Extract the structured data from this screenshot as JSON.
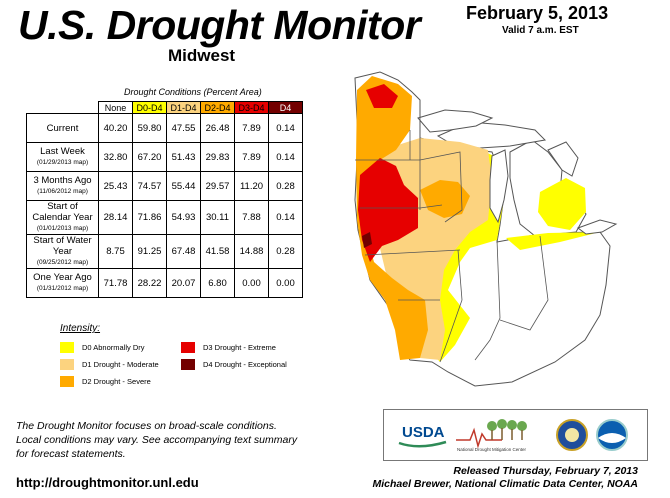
{
  "header": {
    "title": "U.S. Drought Monitor",
    "region": "Midwest",
    "date": "February 5, 2013",
    "valid": "Valid 7 a.m. EST"
  },
  "table": {
    "caption": "Drought Conditions (Percent Area)",
    "columns": [
      "None",
      "D0-D4",
      "D1-D4",
      "D2-D4",
      "D3-D4",
      "D4"
    ],
    "column_colors": [
      "#ffffff",
      "#ffff00",
      "#fcd37f",
      "#ffaa00",
      "#e60000",
      "#730000"
    ],
    "column_text_colors": [
      "#000000",
      "#000000",
      "#000000",
      "#000000",
      "#000000",
      "#ffffff"
    ],
    "rows": [
      {
        "label": "Current",
        "sub": "",
        "values": [
          "40.20",
          "59.80",
          "47.55",
          "26.48",
          "7.89",
          "0.14"
        ]
      },
      {
        "label": "Last Week",
        "sub": "(01/29/2013 map)",
        "values": [
          "32.80",
          "67.20",
          "51.43",
          "29.83",
          "7.89",
          "0.14"
        ]
      },
      {
        "label": "3 Months Ago",
        "sub": "(11/06/2012 map)",
        "values": [
          "25.43",
          "74.57",
          "55.44",
          "29.57",
          "11.20",
          "0.28"
        ]
      },
      {
        "label": "Start of Calendar Year",
        "sub": "(01/01/2013 map)",
        "values": [
          "28.14",
          "71.86",
          "54.93",
          "30.11",
          "7.88",
          "0.14"
        ]
      },
      {
        "label": "Start of Water Year",
        "sub": "(09/25/2012 map)",
        "values": [
          "8.75",
          "91.25",
          "67.48",
          "41.58",
          "14.88",
          "0.28"
        ]
      },
      {
        "label": "One Year Ago",
        "sub": "(01/31/2012 map)",
        "values": [
          "71.78",
          "28.22",
          "20.07",
          "6.80",
          "0.00",
          "0.00"
        ]
      }
    ]
  },
  "legend": {
    "title": "Intensity:",
    "items": [
      {
        "label": "D0 Abnormally Dry",
        "color": "#ffff00"
      },
      {
        "label": "D1 Drought - Moderate",
        "color": "#fcd37f"
      },
      {
        "label": "D2 Drought - Severe",
        "color": "#ffaa00"
      },
      {
        "label": "D3 Drought - Extreme",
        "color": "#e60000"
      },
      {
        "label": "D4 Drought - Exceptional",
        "color": "#730000"
      }
    ]
  },
  "footer": {
    "note_lines": [
      "The Drought Monitor focuses on broad-scale conditions.",
      "Local conditions may vary. See accompanying text summary",
      "for forecast statements."
    ],
    "url": "http://droughtmonitor.unl.edu",
    "released": "Released Thursday, February 7, 2013",
    "author": "Michael Brewer, National Climatic Data Center, NOAA"
  },
  "logos": {
    "usda": "USDA",
    "ndmc": "National Drought Mitigation Center"
  },
  "map_colors": {
    "none": "#ffffff",
    "d0": "#ffff00",
    "d1": "#fcd37f",
    "d2": "#ffaa00",
    "d3": "#e60000",
    "d4": "#730000",
    "lake": "#ffffff",
    "border": "#555555"
  }
}
